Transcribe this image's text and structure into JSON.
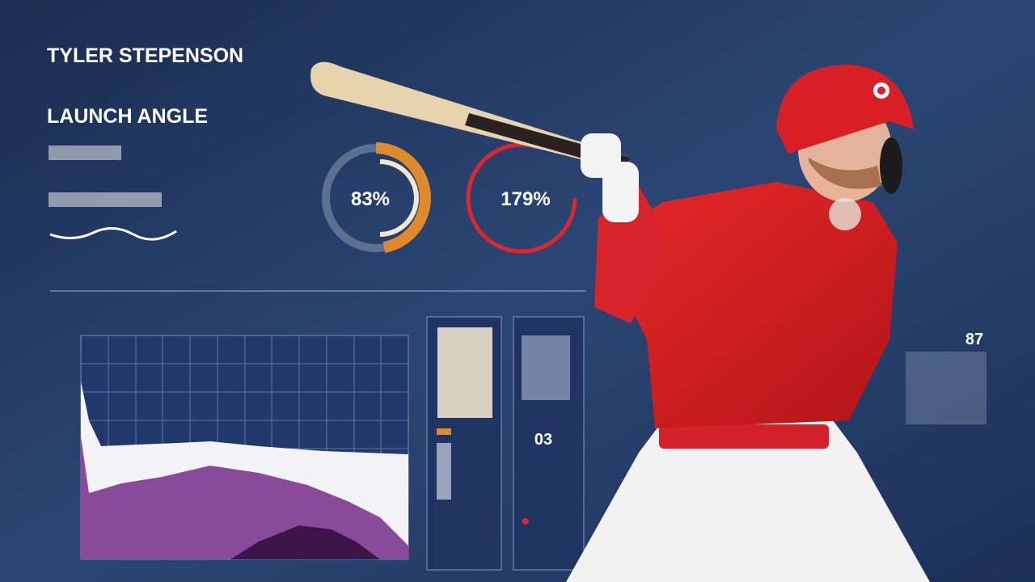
{
  "header": {
    "title": "TYLER STEPENSON",
    "subtitle": "LAUNCH ANGLE"
  },
  "gauges": [
    {
      "label": "83%"
    },
    {
      "label": "179%"
    }
  ],
  "panel": {
    "label": "03"
  },
  "side": {
    "label": "87"
  }
}
